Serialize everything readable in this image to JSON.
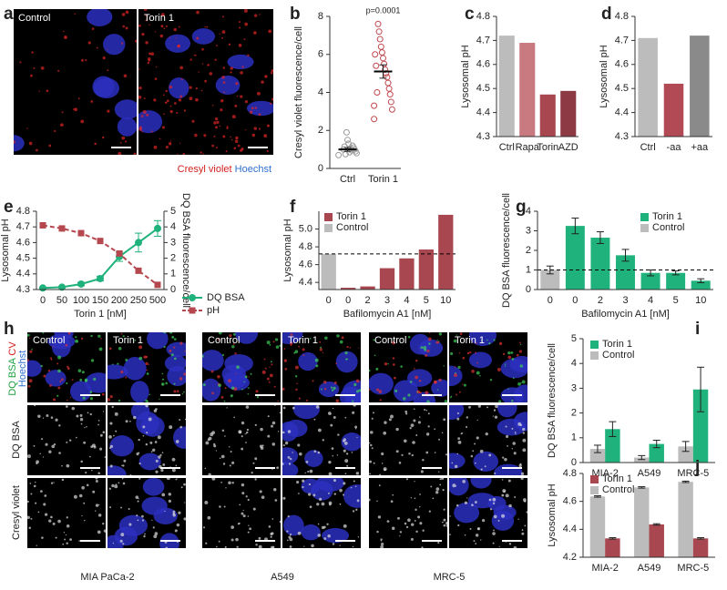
{
  "images": {
    "a": {
      "letter": "a",
      "labels": [
        "Control",
        "Torin 1"
      ],
      "legend": [
        "Cresyl violet",
        "Hoechst"
      ]
    },
    "h": {
      "letter": "h",
      "columns": [
        "Control",
        "Torin 1",
        "Control",
        "Torin 1",
        "Control",
        "Torin 1"
      ],
      "row_labels": [
        [
          "DQ BSA",
          "CV",
          "Hoechst"
        ],
        "DQ BSA",
        "Cresyl violet"
      ],
      "cell_lines": [
        "MIA PaCa-2",
        "A549",
        "MRC-5"
      ]
    }
  },
  "chart_data": [
    {
      "type": "dot",
      "letter": "b",
      "ylabel": "Cresyl violet fluorescence/cell",
      "annotation": "p=0.0001",
      "categories": [
        "Ctrl",
        "Torin 1"
      ],
      "colors": [
        "#9a9a9a",
        "#c0484f"
      ],
      "points": [
        [
          0.7,
          0.8,
          0.9,
          1.0,
          1.1,
          1.2,
          0.95,
          1.05,
          0.85,
          1.3,
          1.5,
          1.9,
          0.75,
          1.15,
          1.0
        ],
        [
          2.6,
          3.1,
          3.5,
          3.9,
          4.2,
          4.5,
          4.8,
          5.0,
          5.2,
          5.5,
          5.8,
          6.1,
          6.4,
          6.8,
          7.2,
          7.6,
          4.0,
          5.4,
          6.0,
          3.3
        ]
      ],
      "means": [
        1.0,
        5.1
      ],
      "errors": [
        0.1,
        0.35
      ],
      "ylim": [
        0,
        8
      ],
      "yticks": [
        0,
        2,
        4,
        6,
        8
      ]
    },
    {
      "type": "bar",
      "letter": "c",
      "ylabel": "Lysosomal pH",
      "categories": [
        "Ctrl",
        "Rapa",
        "Torin",
        "AZD"
      ],
      "values": [
        4.72,
        4.69,
        4.475,
        4.49
      ],
      "colors": [
        "#bcbcbc",
        "#c97a80",
        "#a8474f",
        "#8e3a44"
      ],
      "ylim": [
        4.3,
        4.8
      ],
      "yticks": [
        4.3,
        4.4,
        4.5,
        4.6,
        4.7,
        4.8
      ]
    },
    {
      "type": "bar",
      "letter": "d",
      "ylabel": "Lysosomal pH",
      "categories": [
        "Ctrl",
        "-aa",
        "+aa"
      ],
      "values": [
        4.71,
        4.52,
        4.72
      ],
      "colors": [
        "#bcbcbc",
        "#b24a55",
        "#8a8a8a"
      ],
      "ylim": [
        4.3,
        4.8
      ],
      "yticks": [
        4.3,
        4.4,
        4.5,
        4.6,
        4.7,
        4.8
      ]
    },
    {
      "type": "line",
      "letter": "e",
      "xlabel": "Torin 1 [nM]",
      "ylabel": "Lysosomal pH",
      "y2label": "DQ BSA fluorescence/cell",
      "categories": [
        "0",
        "50",
        "100",
        "150",
        "200",
        "250",
        "500"
      ],
      "series": [
        {
          "name": "DQ BSA",
          "color": "#20b27c",
          "axis": "y2",
          "marker": "circle",
          "dashed": false,
          "values": [
            0.1,
            0.15,
            0.35,
            0.7,
            2.1,
            3.0,
            3.9
          ],
          "errors": [
            0.05,
            0.05,
            0.1,
            0.15,
            0.3,
            0.6,
            0.5
          ]
        },
        {
          "name": "pH",
          "color": "#b5484f",
          "axis": "y",
          "marker": "square",
          "dashed": true,
          "values": [
            4.71,
            4.69,
            4.66,
            4.61,
            4.53,
            4.42,
            4.33
          ]
        }
      ],
      "ylim": [
        4.3,
        4.8
      ],
      "yticks": [
        4.3,
        4.4,
        4.5,
        4.6,
        4.7,
        4.8
      ],
      "y2lim": [
        0,
        5
      ],
      "y2ticks": [
        0,
        1,
        2,
        3,
        4,
        5
      ]
    },
    {
      "type": "bar",
      "letter": "f",
      "xlabel": "Bafilomycin A1 [nM]",
      "ylabel": "Lysosomal pH",
      "categories": [
        "0",
        "0",
        "2",
        "3",
        "4",
        "5",
        "10"
      ],
      "values": [
        4.72,
        4.34,
        4.355,
        4.56,
        4.67,
        4.77,
        5.16
      ],
      "colors": [
        "#bcbcbc",
        "#a8474f",
        "#a8474f",
        "#a8474f",
        "#a8474f",
        "#a8474f",
        "#a8474f"
      ],
      "refline": 4.72,
      "legend": [
        {
          "name": "Torin 1",
          "color": "#a8474f"
        },
        {
          "name": "Control",
          "color": "#bcbcbc"
        }
      ],
      "ylim": [
        4.32,
        5.2
      ],
      "yticks": [
        4.4,
        4.6,
        4.8,
        {
          "value": 5,
          "label": "5.0"
        }
      ]
    },
    {
      "type": "bar",
      "letter": "g",
      "xlabel": "Bafilomycin A1 [nM]",
      "ylabel": "DQ BSA fluorescence/cell",
      "categories": [
        "0",
        "0",
        "2",
        "3",
        "4",
        "5",
        "10"
      ],
      "values": [
        1.0,
        3.25,
        2.65,
        1.75,
        0.85,
        0.85,
        0.45
      ],
      "errors": [
        0.2,
        0.4,
        0.3,
        0.3,
        0.15,
        0.1,
        0.1
      ],
      "colors": [
        "#bcbcbc",
        "#20b27c",
        "#20b27c",
        "#20b27c",
        "#20b27c",
        "#20b27c",
        "#20b27c"
      ],
      "refline": 1,
      "legend": [
        {
          "name": "Torin 1",
          "color": "#20b27c"
        },
        {
          "name": "Control",
          "color": "#bcbcbc"
        }
      ],
      "ylim": [
        0,
        4
      ],
      "yticks": [
        0,
        1,
        2,
        3,
        4
      ]
    },
    {
      "type": "grouped_bar",
      "letter": "i",
      "ylabel": "DQ BSA fluorescence/cell",
      "categories": [
        "MIA-2",
        "A549",
        "MRC-5"
      ],
      "series": [
        {
          "name": "Control",
          "color": "#bcbcbc",
          "values": [
            0.55,
            0.2,
            0.65
          ],
          "errors": [
            0.15,
            0.08,
            0.2
          ]
        },
        {
          "name": "Torin 1",
          "color": "#20b27c",
          "values": [
            1.35,
            0.75,
            2.95
          ],
          "errors": [
            0.3,
            0.15,
            0.9
          ]
        }
      ],
      "ylim": [
        0,
        5
      ],
      "yticks": [
        0,
        1,
        2,
        3,
        4,
        5
      ]
    },
    {
      "type": "grouped_bar",
      "letter": "j",
      "ylabel": "Lysosomal pH",
      "categories": [
        "MIA-2",
        "A549",
        "MRC-5"
      ],
      "series": [
        {
          "name": "Control",
          "color": "#bcbcbc",
          "values": [
            4.635,
            4.7,
            4.74
          ],
          "errors": [
            0.005,
            0.005,
            0.005
          ]
        },
        {
          "name": "Torin 1",
          "color": "#a8474f",
          "values": [
            4.335,
            4.435,
            4.335
          ],
          "errors": [
            0.005,
            0.005,
            0.005
          ]
        }
      ],
      "ylim": [
        4.2,
        4.8
      ],
      "yticks": [
        4.2,
        4.4,
        4.6,
        4.8
      ]
    }
  ]
}
